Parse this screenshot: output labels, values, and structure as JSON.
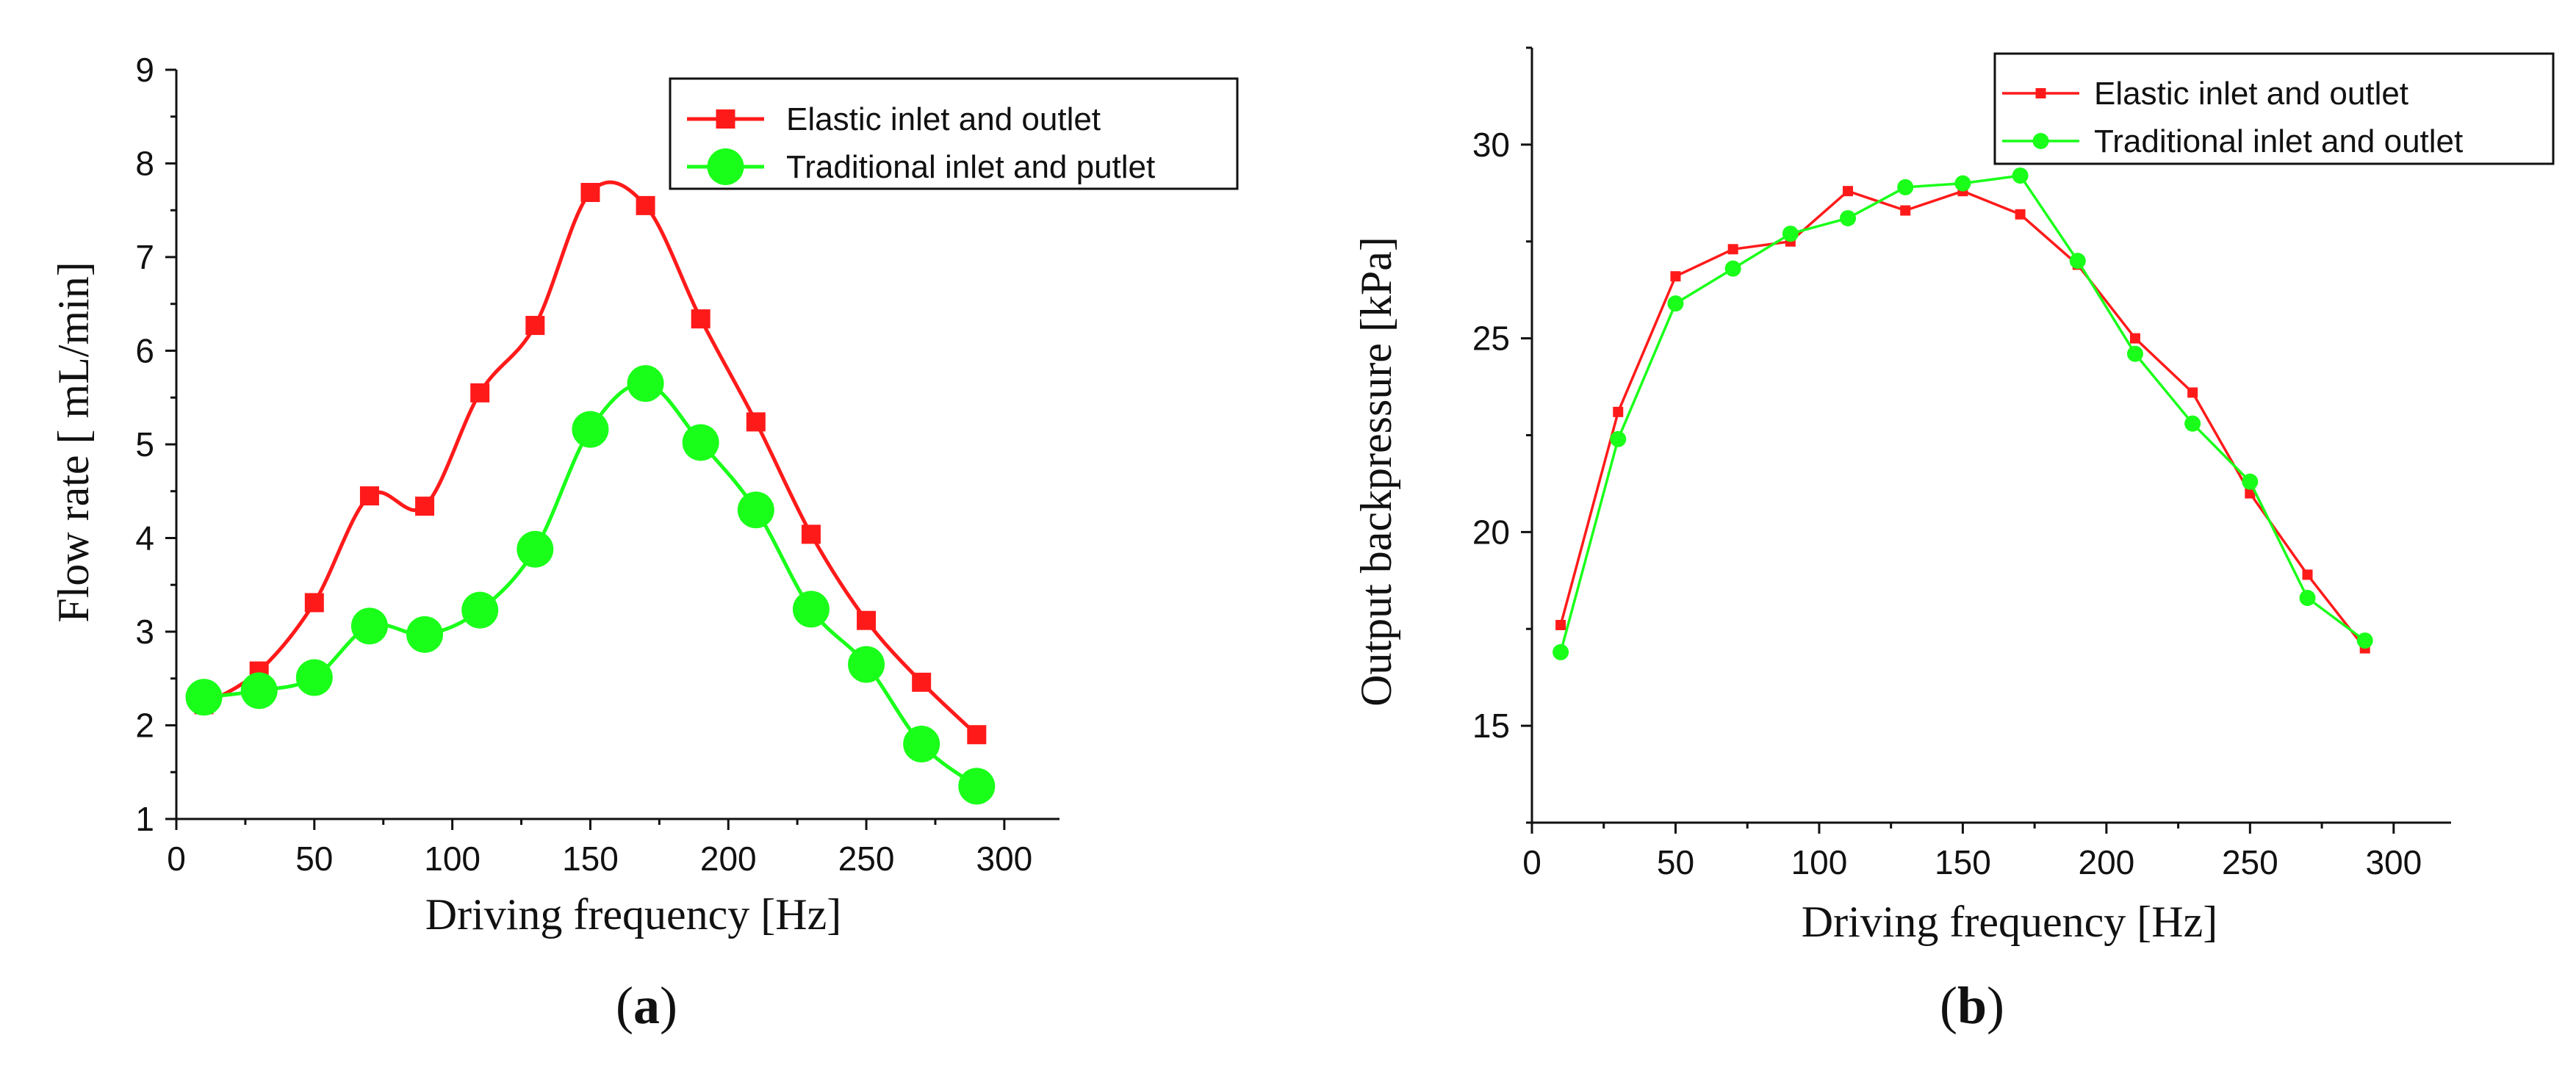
{
  "chart_data": [
    {
      "type": "line",
      "caption": "a",
      "title": "",
      "xlabel": "Driving frequency [Hz]",
      "ylabel": "Flow rate [ mL/min]",
      "xlim": [
        0,
        320
      ],
      "ylim": [
        1,
        9
      ],
      "xticks": [
        0,
        50,
        100,
        150,
        200,
        250,
        300
      ],
      "yticks": [
        1,
        2,
        3,
        4,
        5,
        6,
        7,
        8,
        9
      ],
      "smooth": true,
      "grid": false,
      "legend_position": "top-right",
      "x": [
        10,
        30,
        50,
        70,
        90,
        110,
        130,
        150,
        170,
        190,
        210,
        230,
        250,
        270,
        290
      ],
      "series": [
        {
          "name": "Elastic inlet and outlet",
          "color": "#ff1a1a",
          "marker": "square",
          "values": [
            2.22,
            2.58,
            3.31,
            4.45,
            4.34,
            5.55,
            6.27,
            7.69,
            7.55,
            6.34,
            5.24,
            4.04,
            3.12,
            2.46,
            1.9
          ]
        },
        {
          "name": "Traditional inlet and putlet",
          "color": "#1aff1a",
          "marker": "circle",
          "values": [
            2.3,
            2.37,
            2.51,
            3.06,
            2.97,
            3.23,
            3.88,
            5.16,
            5.65,
            5.02,
            4.3,
            3.24,
            2.65,
            1.8,
            1.35
          ]
        }
      ]
    },
    {
      "type": "line",
      "caption": "b",
      "title": "",
      "xlabel": "Driving frequency [Hz]",
      "ylabel": "Output backpressure [kPa]",
      "xlim": [
        0,
        320
      ],
      "ylim": [
        12.5,
        32.5
      ],
      "xticks": [
        0,
        50,
        100,
        150,
        200,
        250,
        300
      ],
      "yticks": [
        15,
        20,
        25,
        30
      ],
      "smooth": false,
      "grid": false,
      "legend_position": "top-right",
      "x": [
        10,
        30,
        50,
        70,
        90,
        110,
        130,
        150,
        170,
        190,
        210,
        230,
        250,
        270,
        290
      ],
      "series": [
        {
          "name": "Elastic inlet and outlet",
          "color": "#ff1a1a",
          "marker": "square",
          "values": [
            17.6,
            23.1,
            26.6,
            27.3,
            27.5,
            28.8,
            28.3,
            28.8,
            28.2,
            26.9,
            25,
            23.6,
            21,
            18.9,
            17
          ]
        },
        {
          "name": "Traditional  inlet and outlet",
          "color": "#1aff1a",
          "marker": "circle",
          "values": [
            16.9,
            22.4,
            25.9,
            26.8,
            27.7,
            28.1,
            28.9,
            29,
            29.2,
            27,
            24.6,
            22.8,
            21.3,
            18.3,
            17.2
          ]
        }
      ]
    }
  ]
}
